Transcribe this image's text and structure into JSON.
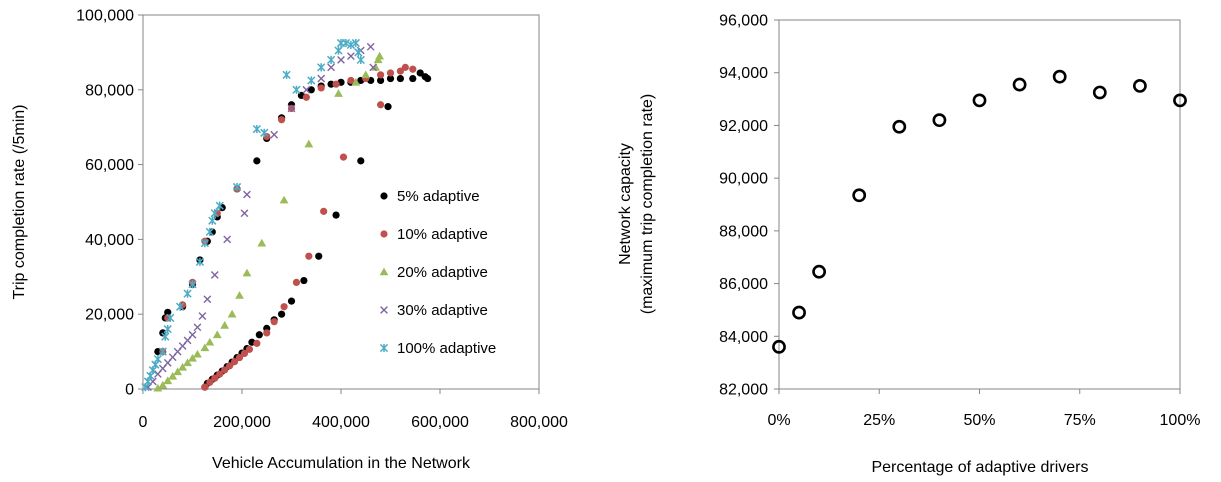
{
  "chart_data": [
    {
      "type": "scatter",
      "xlabel": "Vehicle Accumulation in the Network",
      "ylabel": "Trip completion rate (/5min)",
      "xlim": [
        0,
        800000
      ],
      "ylim": [
        0,
        100000
      ],
      "xticks": [
        0,
        200000,
        400000,
        600000,
        800000
      ],
      "xtick_labels": [
        "0",
        "200,000",
        "400,000",
        "600,000",
        "800,000"
      ],
      "yticks": [
        0,
        20000,
        40000,
        60000,
        80000,
        100000
      ],
      "ytick_labels": [
        "0",
        "20,000",
        "40,000",
        "60,000",
        "80,000",
        "100,000"
      ],
      "grid": false,
      "legend_position": "right-center",
      "series": [
        {
          "name": "5% adaptive",
          "marker": "circle",
          "color": "#000000",
          "points": [
            [
              125000,
              500
            ],
            [
              130000,
              1500
            ],
            [
              140000,
              2600
            ],
            [
              150000,
              3700
            ],
            [
              160000,
              4800
            ],
            [
              170000,
              6000
            ],
            [
              180000,
              7200
            ],
            [
              190000,
              8400
            ],
            [
              200000,
              9600
            ],
            [
              210000,
              10800
            ],
            [
              220000,
              12500
            ],
            [
              235000,
              14500
            ],
            [
              250000,
              16200
            ],
            [
              265000,
              18500
            ],
            [
              280000,
              20000
            ],
            [
              300000,
              23500
            ],
            [
              325000,
              29000
            ],
            [
              355000,
              35500
            ],
            [
              390000,
              46500
            ],
            [
              440000,
              61000
            ],
            [
              495000,
              75500
            ],
            [
              545000,
              83000
            ],
            [
              560000,
              84500
            ],
            [
              570000,
              83500
            ],
            [
              575000,
              83000
            ],
            [
              30000,
              10000
            ],
            [
              40000,
              15000
            ],
            [
              45000,
              19000
            ],
            [
              50000,
              20500
            ],
            [
              80000,
              22000
            ],
            [
              100000,
              28000
            ],
            [
              115000,
              34500
            ],
            [
              130000,
              39500
            ],
            [
              140000,
              42000
            ],
            [
              150000,
              46000
            ],
            [
              160000,
              48500
            ],
            [
              190000,
              53500
            ],
            [
              230000,
              61000
            ],
            [
              250000,
              67000
            ],
            [
              280000,
              72500
            ],
            [
              300000,
              76000
            ],
            [
              320000,
              78500
            ],
            [
              340000,
              80000
            ],
            [
              360000,
              81000
            ],
            [
              380000,
              81500
            ],
            [
              400000,
              82000
            ],
            [
              420000,
              82000
            ],
            [
              440000,
              82500
            ],
            [
              460000,
              82500
            ],
            [
              480000,
              82500
            ],
            [
              500000,
              83000
            ],
            [
              520000,
              83000
            ]
          ]
        },
        {
          "name": "10% adaptive",
          "marker": "circle",
          "color": "#c0504d",
          "points": [
            [
              125000,
              500
            ],
            [
              135000,
              1800
            ],
            [
              145000,
              2900
            ],
            [
              155000,
              4000
            ],
            [
              165000,
              5100
            ],
            [
              175000,
              6200
            ],
            [
              185000,
              7300
            ],
            [
              195000,
              8400
            ],
            [
              205000,
              9500
            ],
            [
              215000,
              10600
            ],
            [
              230000,
              12200
            ],
            [
              250000,
              15000
            ],
            [
              265000,
              18000
            ],
            [
              285000,
              22000
            ],
            [
              310000,
              28500
            ],
            [
              335000,
              35500
            ],
            [
              365000,
              47500
            ],
            [
              405000,
              62000
            ],
            [
              480000,
              76000
            ],
            [
              530000,
              86000
            ],
            [
              545000,
              85500
            ],
            [
              40000,
              10000
            ],
            [
              50000,
              19000
            ],
            [
              80000,
              22500
            ],
            [
              100000,
              28500
            ],
            [
              125000,
              39500
            ],
            [
              150000,
              47000
            ],
            [
              190000,
              53500
            ],
            [
              250000,
              67500
            ],
            [
              280000,
              72000
            ],
            [
              300000,
              75000
            ],
            [
              330000,
              78000
            ],
            [
              360000,
              80500
            ],
            [
              390000,
              81500
            ],
            [
              420000,
              82500
            ],
            [
              450000,
              83000
            ],
            [
              480000,
              84000
            ],
            [
              500000,
              84500
            ],
            [
              520000,
              85000
            ]
          ]
        },
        {
          "name": "20% adaptive",
          "marker": "triangle",
          "color": "#9bbb59",
          "points": [
            [
              30000,
              200
            ],
            [
              40000,
              1000
            ],
            [
              50000,
              2200
            ],
            [
              60000,
              3400
            ],
            [
              70000,
              4600
            ],
            [
              80000,
              5800
            ],
            [
              90000,
              7000
            ],
            [
              100000,
              8200
            ],
            [
              110000,
              9300
            ],
            [
              125000,
              11000
            ],
            [
              135000,
              12500
            ],
            [
              150000,
              14500
            ],
            [
              165000,
              17000
            ],
            [
              180000,
              20000
            ],
            [
              195000,
              25000
            ],
            [
              210000,
              31000
            ],
            [
              240000,
              39000
            ],
            [
              285000,
              50500
            ],
            [
              335000,
              65500
            ],
            [
              395000,
              79000
            ],
            [
              430000,
              82000
            ],
            [
              450000,
              84000
            ],
            [
              470000,
              86000
            ],
            [
              475000,
              88000
            ],
            [
              478000,
              89000
            ]
          ]
        },
        {
          "name": "30% adaptive",
          "marker": "x",
          "color": "#8064a2",
          "points": [
            [
              10000,
              500
            ],
            [
              20000,
              2000
            ],
            [
              30000,
              4000
            ],
            [
              40000,
              5500
            ],
            [
              50000,
              7000
            ],
            [
              60000,
              8500
            ],
            [
              70000,
              10000
            ],
            [
              80000,
              11500
            ],
            [
              90000,
              13000
            ],
            [
              100000,
              14500
            ],
            [
              110000,
              16500
            ],
            [
              120000,
              19500
            ],
            [
              130000,
              24000
            ],
            [
              145000,
              30500
            ],
            [
              170000,
              40000
            ],
            [
              205000,
              47000
            ],
            [
              210000,
              52000
            ],
            [
              265000,
              68000
            ],
            [
              300000,
              75000
            ],
            [
              330000,
              80000
            ],
            [
              360000,
              83000
            ],
            [
              380000,
              86000
            ],
            [
              400000,
              88000
            ],
            [
              420000,
              89000
            ],
            [
              440000,
              90500
            ],
            [
              460000,
              91500
            ],
            [
              465000,
              86000
            ]
          ]
        },
        {
          "name": "100% adaptive",
          "marker": "star",
          "color": "#4bacc6",
          "points": [
            [
              5000,
              500
            ],
            [
              10000,
              2000
            ],
            [
              15000,
              3500
            ],
            [
              20000,
              5000
            ],
            [
              25000,
              6500
            ],
            [
              30000,
              8000
            ],
            [
              40000,
              10000
            ],
            [
              45000,
              14000
            ],
            [
              50000,
              16000
            ],
            [
              55000,
              19000
            ],
            [
              75000,
              22000
            ],
            [
              90000,
              25500
            ],
            [
              100000,
              28000
            ],
            [
              115000,
              34000
            ],
            [
              125000,
              39000
            ],
            [
              135000,
              42000
            ],
            [
              140000,
              45000
            ],
            [
              145000,
              47000
            ],
            [
              155000,
              49000
            ],
            [
              190000,
              54000
            ],
            [
              230000,
              69500
            ],
            [
              245000,
              68500
            ],
            [
              290000,
              84000
            ],
            [
              310000,
              80000
            ],
            [
              340000,
              82500
            ],
            [
              360000,
              86000
            ],
            [
              380000,
              88000
            ],
            [
              395000,
              90500
            ],
            [
              400000,
              92500
            ],
            [
              410000,
              92500
            ],
            [
              420000,
              92000
            ],
            [
              430000,
              92500
            ],
            [
              435000,
              90000
            ],
            [
              440000,
              88000
            ]
          ]
        }
      ]
    },
    {
      "type": "scatter",
      "xlabel": "Percentage of adaptive drivers",
      "ylabel": "Network capacity",
      "ylabel_sub": "(maximum trip completion rate)",
      "xlim": [
        0,
        1
      ],
      "ylim": [
        82000,
        96000
      ],
      "xticks": [
        0,
        0.25,
        0.5,
        0.75,
        1
      ],
      "xtick_labels": [
        "0%",
        "25%",
        "50%",
        "75%",
        "100%"
      ],
      "yticks": [
        82000,
        84000,
        86000,
        88000,
        90000,
        92000,
        94000,
        96000
      ],
      "ytick_labels": [
        "82,000",
        "84,000",
        "86,000",
        "88,000",
        "90,000",
        "92,000",
        "94,000",
        "96,000"
      ],
      "grid": false,
      "marker": "hollow-circle",
      "color": "#000000",
      "x": [
        0.0,
        0.05,
        0.1,
        0.2,
        0.3,
        0.4,
        0.5,
        0.6,
        0.7,
        0.8,
        0.9,
        1.0
      ],
      "y": [
        83600,
        84900,
        86450,
        89350,
        91950,
        92200,
        92950,
        93550,
        93850,
        93250,
        93500,
        92950
      ]
    }
  ]
}
